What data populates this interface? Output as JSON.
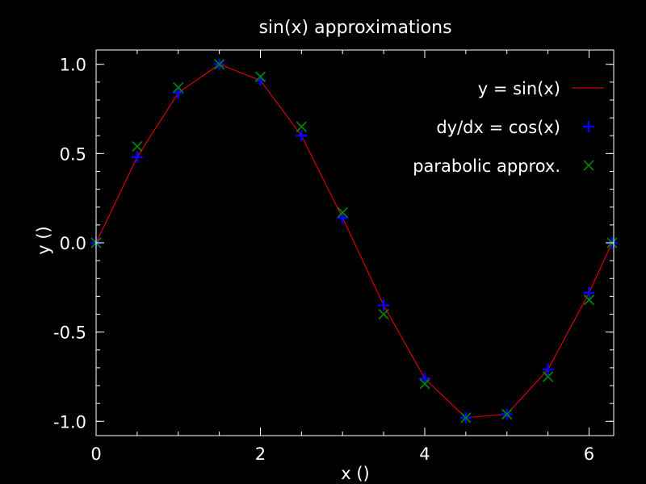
{
  "chart_data": {
    "type": "line",
    "title": "sin(x) approximations",
    "xlabel": "x ()",
    "ylabel": "y ()",
    "xlim": [
      0,
      6.3
    ],
    "ylim": [
      -1.08,
      1.08
    ],
    "xticks": [
      0,
      2,
      4,
      6
    ],
    "yticks": [
      1.0,
      0.5,
      0.0,
      -0.5,
      -1.0
    ],
    "xtick_labels": [
      "0",
      "2",
      "4",
      "6"
    ],
    "ytick_labels": [
      "1.0",
      "0.5",
      "0.0",
      "-0.5",
      "-1.0"
    ],
    "x_minor_step": 0.5,
    "y_minor_step": 0.1,
    "grid": false,
    "legend_position": "top-right",
    "colors": {
      "background": "#000000",
      "axes": "#ffffff",
      "sin": "#ff0000",
      "cos": "#0000ff",
      "parabolic": "#008000"
    },
    "series": [
      {
        "name": "y = sin(x)",
        "style": "line",
        "x": [
          0,
          0.5,
          1.0,
          1.5,
          2.0,
          2.5,
          3.0,
          3.5,
          4.0,
          4.5,
          5.0,
          5.5,
          6.0,
          6.28
        ],
        "values": [
          0,
          0.48,
          0.84,
          1.0,
          0.91,
          0.6,
          0.14,
          -0.35,
          -0.76,
          -0.98,
          -0.96,
          -0.71,
          -0.28,
          0
        ]
      },
      {
        "name": "dy/dx = cos(x)",
        "style": "plus",
        "x": [
          0,
          0.5,
          1.0,
          1.5,
          2.0,
          2.5,
          3.0,
          3.5,
          4.0,
          4.5,
          5.0,
          5.5,
          6.0,
          6.28
        ],
        "values": [
          0,
          0.48,
          0.84,
          1.0,
          0.91,
          0.6,
          0.14,
          -0.35,
          -0.76,
          -0.98,
          -0.96,
          -0.71,
          -0.28,
          0
        ]
      },
      {
        "name": "parabolic approx.",
        "style": "cross",
        "x": [
          0,
          0.5,
          1.0,
          1.5,
          2.0,
          2.5,
          3.0,
          3.5,
          4.0,
          4.5,
          5.0,
          5.5,
          6.0,
          6.28
        ],
        "values": [
          0,
          0.54,
          0.87,
          1.0,
          0.93,
          0.65,
          0.17,
          -0.4,
          -0.79,
          -0.98,
          -0.96,
          -0.75,
          -0.32,
          0
        ]
      }
    ]
  }
}
